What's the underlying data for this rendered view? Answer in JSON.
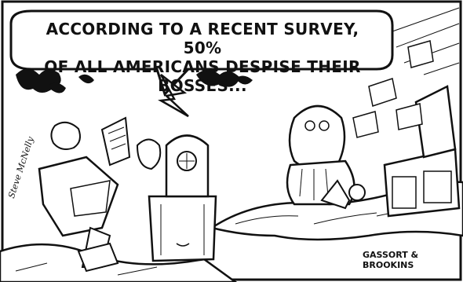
{
  "caption": {
    "line1": "ACCORDING TO A RECENT SURVEY, 50%",
    "line2": "OF ALL AMERICANS DESPISE THEIR BOSSES..."
  },
  "signatures": {
    "left": "Steve McNelly",
    "right": "GASSORT & BROOKINS"
  },
  "colors": {
    "ink": "#111111",
    "paper": "#ffffff"
  }
}
